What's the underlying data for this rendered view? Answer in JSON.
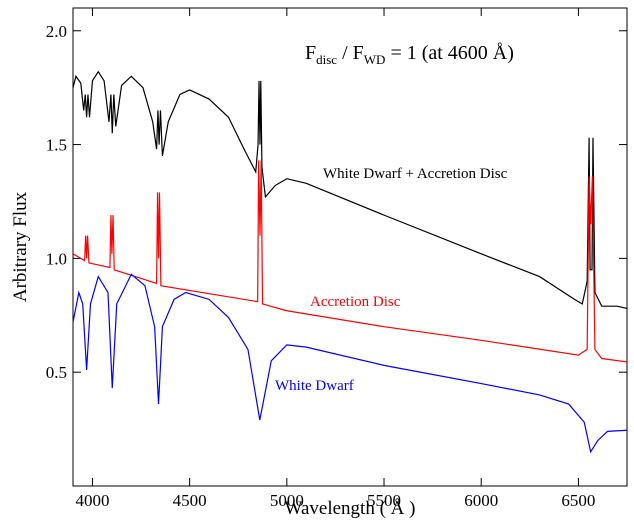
{
  "chart_data": {
    "type": "line",
    "xlabel": "Wavelength ( Å )",
    "ylabel": "Arbitrary Flux",
    "annotation": {
      "parts": [
        "F",
        "disc",
        " / F",
        "WD",
        " =  1 (at 4600 Å)"
      ]
    },
    "xlim": [
      3900,
      6750
    ],
    "ylim": [
      0,
      2.1
    ],
    "xticks": [
      4000,
      4500,
      5000,
      5500,
      6000,
      6500
    ],
    "yticks": [
      {
        "value": 0.5,
        "label": "0.5"
      },
      {
        "value": 1.0,
        "label": "1.0"
      },
      {
        "value": 1.5,
        "label": "1.5"
      },
      {
        "value": 2.0,
        "label": "2.0"
      }
    ],
    "series": [
      {
        "name": "White Dwarf + Accretion Disc",
        "color": "#000000",
        "x": [
          3900,
          3915,
          3940,
          3955,
          3963,
          3970,
          3977,
          3985,
          4000,
          4030,
          4060,
          4085,
          4095,
          4102,
          4110,
          4120,
          4150,
          4200,
          4260,
          4310,
          4330,
          4337,
          4343,
          4350,
          4360,
          4390,
          4450,
          4500,
          4600,
          4700,
          4780,
          4840,
          4852,
          4857,
          4862,
          4866,
          4872,
          4890,
          4940,
          5000,
          5100,
          5500,
          6000,
          6300,
          6480,
          6520,
          6545,
          6555,
          6560,
          6570,
          6575,
          6585,
          6620,
          6700,
          6750
        ],
        "values": [
          1.75,
          1.8,
          1.77,
          1.65,
          1.72,
          1.62,
          1.72,
          1.62,
          1.78,
          1.82,
          1.78,
          1.6,
          1.72,
          1.55,
          1.72,
          1.58,
          1.76,
          1.8,
          1.75,
          1.6,
          1.48,
          1.65,
          1.5,
          1.65,
          1.45,
          1.6,
          1.72,
          1.74,
          1.7,
          1.62,
          1.48,
          1.38,
          1.5,
          1.78,
          1.5,
          1.78,
          1.4,
          1.27,
          1.32,
          1.35,
          1.33,
          1.19,
          1.02,
          0.92,
          0.82,
          0.8,
          0.9,
          1.53,
          0.95,
          0.95,
          1.53,
          0.85,
          0.79,
          0.79,
          0.78
        ]
      },
      {
        "name": "Accretion Disc",
        "color": "#ff0000",
        "x": [
          3900,
          3960,
          3965,
          3970,
          3975,
          3982,
          4090,
          4095,
          4100,
          4106,
          4112,
          4330,
          4335,
          4340,
          4345,
          4352,
          4850,
          4855,
          4862,
          4868,
          4875,
          5000,
          5500,
          6000,
          6500,
          6545,
          6555,
          6563,
          6572,
          6585,
          6620,
          6750
        ],
        "values": [
          1.02,
          0.99,
          1.1,
          1.0,
          1.1,
          0.98,
          0.96,
          1.19,
          1.02,
          1.19,
          0.95,
          0.89,
          1.29,
          1.0,
          1.29,
          0.88,
          0.81,
          1.43,
          1.1,
          1.43,
          0.8,
          0.77,
          0.7,
          0.64,
          0.575,
          0.6,
          1.36,
          1.15,
          1.36,
          0.6,
          0.56,
          0.545
        ]
      },
      {
        "name": "White Dwarf",
        "color": "#0000ff",
        "x": [
          3900,
          3930,
          3950,
          3970,
          3990,
          4030,
          4080,
          4102,
          4125,
          4200,
          4270,
          4320,
          4340,
          4360,
          4420,
          4480,
          4600,
          4700,
          4800,
          4861,
          4920,
          5000,
          5100,
          5500,
          6000,
          6300,
          6450,
          6530,
          6563,
          6600,
          6650,
          6750
        ],
        "values": [
          0.72,
          0.85,
          0.8,
          0.51,
          0.8,
          0.92,
          0.85,
          0.43,
          0.8,
          0.93,
          0.88,
          0.7,
          0.36,
          0.7,
          0.82,
          0.85,
          0.82,
          0.74,
          0.6,
          0.29,
          0.55,
          0.62,
          0.61,
          0.53,
          0.45,
          0.4,
          0.36,
          0.28,
          0.15,
          0.2,
          0.24,
          0.245
        ]
      }
    ]
  }
}
